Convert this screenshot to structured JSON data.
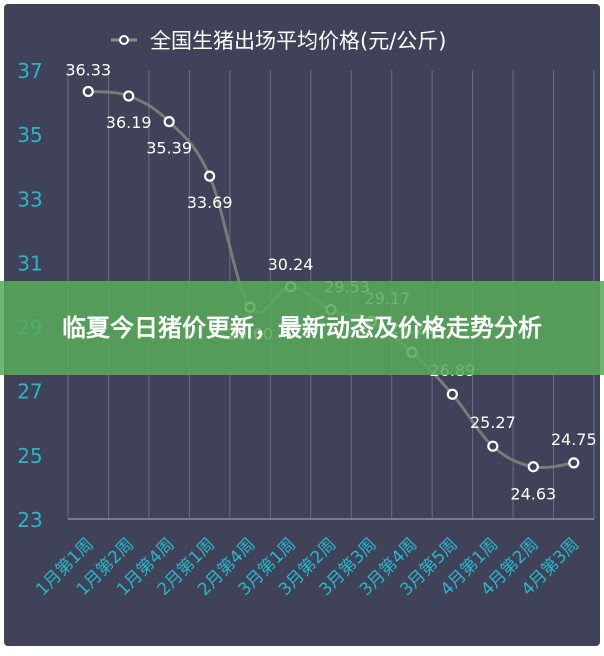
{
  "banner": {
    "headline": "临夏今日猪价更新，最新动态及价格走势分析"
  },
  "colors": {
    "background": "#3f4258",
    "line": "#7a7a7a",
    "axis_labels": "#29b6c8",
    "banner": "#58aa5a",
    "grid": "#6b6e85"
  },
  "chart_data": {
    "type": "line",
    "title": "",
    "categories": [
      "1月第1周",
      "1月第2周",
      "1月第4周",
      "2月第1周",
      "2月第4周",
      "3月第1周",
      "3月第2周",
      "3月第3周",
      "3月第4周",
      "3月第5周",
      "4月第1周",
      "4月第2周",
      "4月第3周"
    ],
    "series": [
      {
        "name": "全国生猪出场平均价格(元/公斤)",
        "values": [
          36.33,
          36.19,
          35.39,
          33.69,
          29.6,
          30.24,
          29.53,
          29.17,
          28.2,
          26.89,
          25.27,
          24.63,
          24.75
        ]
      }
    ],
    "data_labels": [
      "36.33",
      "36.19",
      "35.39",
      "33.69",
      "29.60",
      "30.24",
      "29.53",
      "29.17",
      "28.20",
      "26.89",
      "25.27",
      "24.63",
      "24.75"
    ],
    "yticks": [
      "23",
      "25",
      "27",
      "29",
      "31",
      "33",
      "35",
      "37"
    ],
    "ylim": [
      23,
      37
    ],
    "grid": true,
    "legend_position": "top"
  }
}
